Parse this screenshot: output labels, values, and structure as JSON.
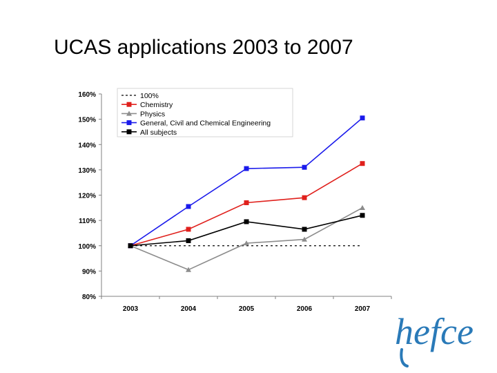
{
  "slide": {
    "title": "UCAS applications 2003 to 2007"
  },
  "logo": {
    "text": "hefce",
    "color": "#2a7ab8"
  },
  "chart_data": {
    "type": "line",
    "title": "",
    "xlabel": "",
    "ylabel": "",
    "categories": [
      "2003",
      "2004",
      "2005",
      "2006",
      "2007"
    ],
    "ylim": [
      80,
      160
    ],
    "yticks": [
      "80%",
      "90%",
      "100%",
      "110%",
      "120%",
      "130%",
      "140%",
      "150%",
      "160%"
    ],
    "ytick_values": [
      80,
      90,
      100,
      110,
      120,
      130,
      140,
      150,
      160
    ],
    "grid": false,
    "legend_position": "top-left",
    "reference_line": {
      "name": "100%",
      "value": 100,
      "style": "dashed",
      "color": "#000000"
    },
    "series": [
      {
        "name": "Chemistry",
        "color": "#e0201c",
        "marker": "square",
        "values": [
          100,
          106.5,
          117,
          119,
          132.5
        ]
      },
      {
        "name": "Physics",
        "color": "#8c8c8c",
        "marker": "triangle",
        "values": [
          100,
          90.5,
          101,
          102.5,
          115
        ]
      },
      {
        "name": "General, Civil and Chemical Engineering",
        "color": "#1a1aeb",
        "marker": "square",
        "values": [
          100,
          115.5,
          130.5,
          131,
          150.5
        ]
      },
      {
        "name": "All subjects",
        "color": "#000000",
        "marker": "square",
        "values": [
          100,
          102,
          109.5,
          106.5,
          112
        ]
      }
    ]
  }
}
